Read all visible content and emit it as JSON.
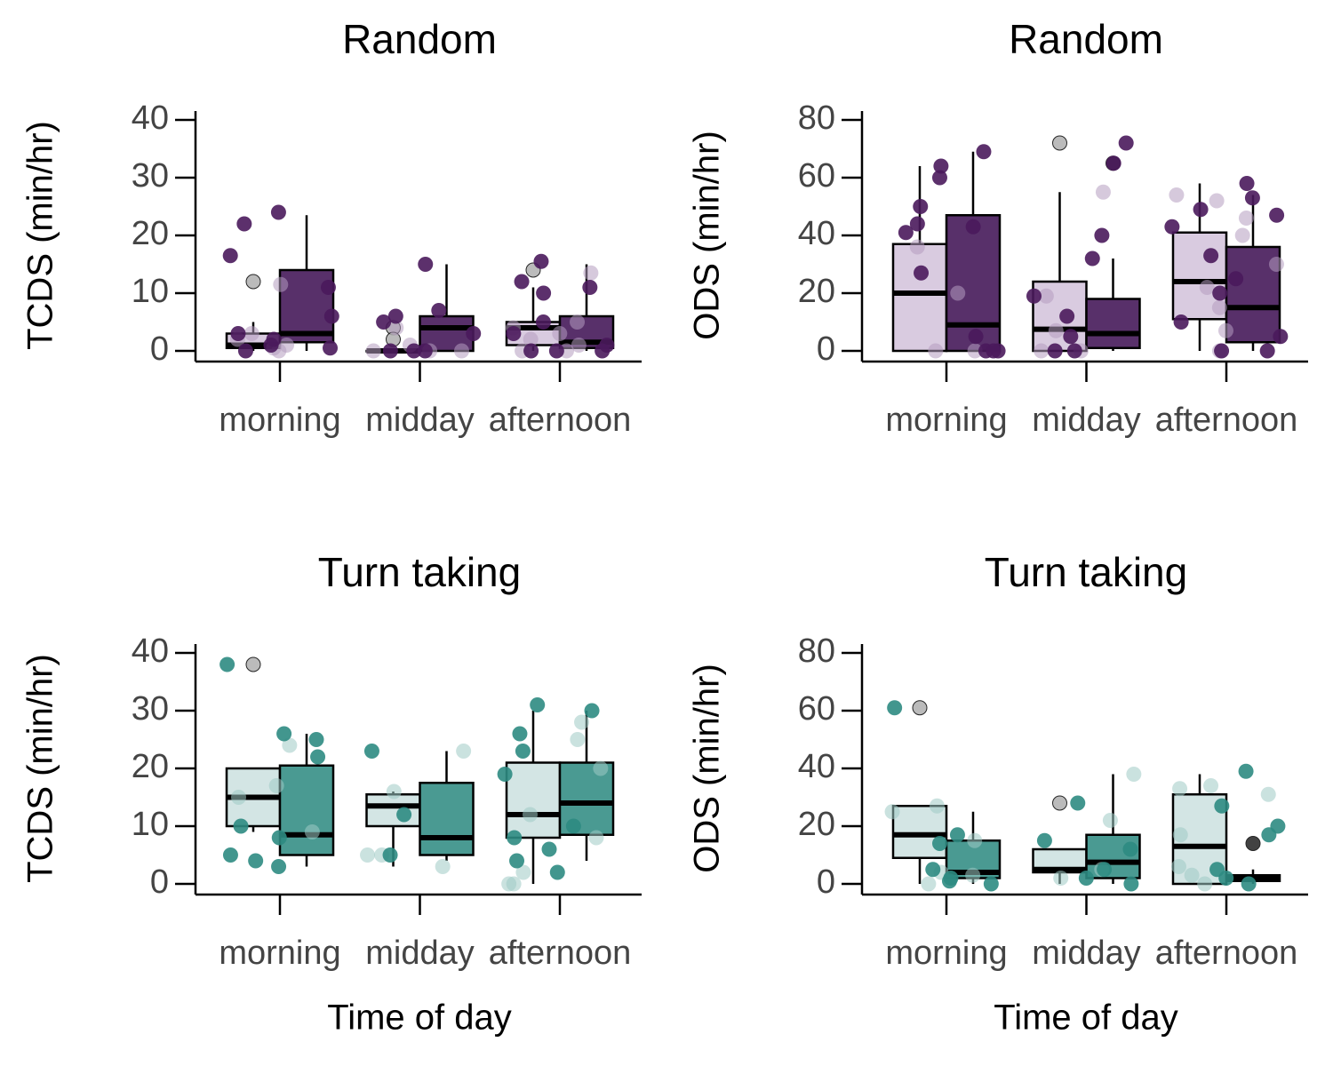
{
  "chart_data": [
    {
      "type": "box",
      "title": "Random",
      "ylabel": "TCDS (min/hr)",
      "categories": [
        "morning",
        "midday",
        "afternoon"
      ],
      "ylim": [
        0,
        40
      ],
      "yticks": [
        0,
        10,
        20,
        30,
        40
      ],
      "series": [
        {
          "color": "#d9cbe0",
          "point_color": "#b49cc0",
          "outlier_color": "#b0b0b0",
          "boxes": [
            {
              "whisker_low": 0,
              "q1": 0.5,
              "median": 1,
              "q3": 3,
              "whisker_high": 5,
              "outliers": [
                12
              ],
              "points": [
                0,
                1,
                2,
                3,
                0.5,
                11.5
              ]
            },
            {
              "whisker_low": 0,
              "q1": 0,
              "median": 0,
              "q3": 0,
              "whisker_high": 0,
              "outliers": [
                4,
                2
              ],
              "points": [
                0,
                0,
                0,
                1,
                4
              ]
            },
            {
              "whisker_low": 0,
              "q1": 1,
              "median": 4,
              "q3": 5,
              "whisker_high": 11,
              "outliers": [
                14
              ],
              "points": [
                13.5,
                5,
                4,
                3,
                2,
                1,
                0,
                0
              ]
            }
          ]
        },
        {
          "color": "#58306a",
          "point_color": "#4a1a5c",
          "outlier_color": "#222222",
          "boxes": [
            {
              "whisker_low": 0,
              "q1": 1.5,
              "median": 3,
              "q3": 14,
              "whisker_high": 23.5,
              "outliers": [],
              "points": [
                24,
                22,
                16.5,
                11,
                6,
                3,
                2,
                0.5,
                0,
                1
              ]
            },
            {
              "whisker_low": 0,
              "q1": 0,
              "median": 4,
              "q3": 6,
              "whisker_high": 15,
              "outliers": [],
              "points": [
                15,
                7,
                6,
                5,
                3,
                0,
                0,
                0
              ]
            },
            {
              "whisker_low": 0,
              "q1": 0.5,
              "median": 1.5,
              "q3": 6,
              "whisker_high": 15,
              "outliers": [],
              "points": [
                15.5,
                12,
                11,
                10,
                5,
                3,
                1,
                0,
                0,
                0
              ]
            }
          ]
        }
      ]
    },
    {
      "type": "box",
      "title": "Random",
      "ylabel": "ODS (min/hr)",
      "categories": [
        "morning",
        "midday",
        "afternoon"
      ],
      "ylim": [
        0,
        80
      ],
      "yticks": [
        0,
        20,
        40,
        60,
        80
      ],
      "series": [
        {
          "color": "#d9cbe0",
          "point_color": "#b49cc0",
          "outlier_color": "#b0b0b0",
          "boxes": [
            {
              "whisker_low": 0,
              "q1": 0,
              "median": 20,
              "q3": 37,
              "whisker_high": 64,
              "outliers": [],
              "points": [
                36,
                20,
                0,
                0
              ]
            },
            {
              "whisker_low": 0,
              "q1": 0,
              "median": 7.5,
              "q3": 24,
              "whisker_high": 55,
              "outliers": [
                72
              ],
              "points": [
                55,
                19,
                7,
                0,
                0
              ]
            },
            {
              "whisker_low": 0,
              "q1": 11,
              "median": 24,
              "q3": 41,
              "whisker_high": 58,
              "outliers": [],
              "points": [
                54,
                52,
                46,
                40,
                30,
                22,
                15,
                7,
                0
              ]
            }
          ]
        },
        {
          "color": "#58306a",
          "point_color": "#4a1a5c",
          "outlier_color": "#222222",
          "boxes": [
            {
              "whisker_low": 0,
              "q1": 0,
              "median": 9,
              "q3": 47,
              "whisker_high": 69,
              "outliers": [],
              "points": [
                69,
                64,
                60,
                50,
                44,
                43,
                41,
                27,
                5,
                0,
                0,
                0
              ]
            },
            {
              "whisker_low": 0,
              "q1": 1,
              "median": 6,
              "q3": 18,
              "whisker_high": 32,
              "outliers": [
                65
              ],
              "points": [
                72,
                65,
                40,
                32,
                19,
                12,
                5,
                0,
                0
              ]
            },
            {
              "whisker_low": 0,
              "q1": 3,
              "median": 15,
              "q3": 36,
              "whisker_high": 54,
              "outliers": [],
              "points": [
                58,
                53,
                49,
                47,
                43,
                33,
                25,
                20,
                10,
                5,
                0,
                0
              ]
            }
          ]
        }
      ]
    },
    {
      "type": "box",
      "title": "Turn taking",
      "ylabel": "TCDS (min/hr)",
      "xlabel": "Time of day",
      "categories": [
        "morning",
        "midday",
        "afternoon"
      ],
      "ylim": [
        0,
        40
      ],
      "yticks": [
        0,
        10,
        20,
        30,
        40
      ],
      "series": [
        {
          "color": "#d3e5e4",
          "point_color": "#9fcac5",
          "outlier_color": "#b0b0b0",
          "boxes": [
            {
              "whisker_low": 9,
              "q1": 10,
              "median": 15,
              "q3": 20,
              "whisker_high": 20,
              "outliers": [
                38
              ],
              "points": [
                24,
                17,
                15,
                9
              ]
            },
            {
              "whisker_low": 3,
              "q1": 10,
              "median": 13.5,
              "q3": 15.5,
              "whisker_high": 16,
              "outliers": [],
              "points": [
                23,
                16,
                5,
                5,
                3
              ]
            },
            {
              "whisker_low": 0,
              "q1": 8,
              "median": 12,
              "q3": 21,
              "whisker_high": 30,
              "outliers": [],
              "points": [
                28,
                25,
                20,
                12,
                8,
                2,
                0,
                0
              ]
            }
          ]
        },
        {
          "color": "#4a9a92",
          "point_color": "#2e8b82",
          "outlier_color": "#222222",
          "boxes": [
            {
              "whisker_low": 3,
              "q1": 5,
              "median": 8.5,
              "q3": 20.5,
              "whisker_high": 26,
              "outliers": [],
              "points": [
                38,
                26,
                25,
                22,
                10,
                8,
                5,
                4,
                3
              ]
            },
            {
              "whisker_low": 4,
              "q1": 5,
              "median": 8,
              "q3": 17.5,
              "whisker_high": 23,
              "outliers": [],
              "points": [
                23,
                12,
                5
              ]
            },
            {
              "whisker_low": 4,
              "q1": 8.5,
              "median": 14,
              "q3": 21,
              "whisker_high": 30,
              "outliers": [],
              "points": [
                31,
                30,
                26,
                23,
                19,
                10,
                8,
                6,
                4,
                2
              ]
            }
          ]
        }
      ]
    },
    {
      "type": "box",
      "title": "Turn taking",
      "ylabel": "ODS (min/hr)",
      "xlabel": "Time of day",
      "categories": [
        "morning",
        "midday",
        "afternoon"
      ],
      "ylim": [
        0,
        80
      ],
      "yticks": [
        0,
        20,
        40,
        60,
        80
      ],
      "series": [
        {
          "color": "#d3e5e4",
          "point_color": "#9fcac5",
          "outlier_color": "#b0b0b0",
          "boxes": [
            {
              "whisker_low": 0,
              "q1": 9,
              "median": 17,
              "q3": 27,
              "whisker_high": 27,
              "outliers": [
                61
              ],
              "points": [
                27,
                25,
                15,
                4,
                3,
                0
              ]
            },
            {
              "whisker_low": 0,
              "q1": 4,
              "median": 5,
              "q3": 12,
              "whisker_high": 12,
              "outliers": [
                28
              ],
              "points": [
                38,
                22,
                5,
                2
              ]
            },
            {
              "whisker_low": 0,
              "q1": 0,
              "median": 13,
              "q3": 31,
              "whisker_high": 38,
              "outliers": [],
              "points": [
                34,
                33,
                31,
                17,
                6,
                3,
                0
              ]
            }
          ]
        },
        {
          "color": "#4a9a92",
          "point_color": "#2e8b82",
          "outlier_color": "#222222",
          "boxes": [
            {
              "whisker_low": 0,
              "q1": 2,
              "median": 4,
              "q3": 15,
              "whisker_high": 25,
              "outliers": [],
              "points": [
                61,
                17,
                14,
                5,
                2,
                0,
                1
              ]
            },
            {
              "whisker_low": 0,
              "q1": 2,
              "median": 7.5,
              "q3": 17,
              "whisker_high": 38,
              "outliers": [],
              "points": [
                28,
                15,
                12,
                5,
                2,
                0
              ]
            },
            {
              "whisker_low": 0,
              "q1": 1,
              "median": 2,
              "q3": 3,
              "whisker_high": 5,
              "outliers": [
                14
              ],
              "points": [
                39,
                27,
                20,
                17,
                5,
                2,
                0
              ]
            }
          ]
        }
      ]
    }
  ]
}
